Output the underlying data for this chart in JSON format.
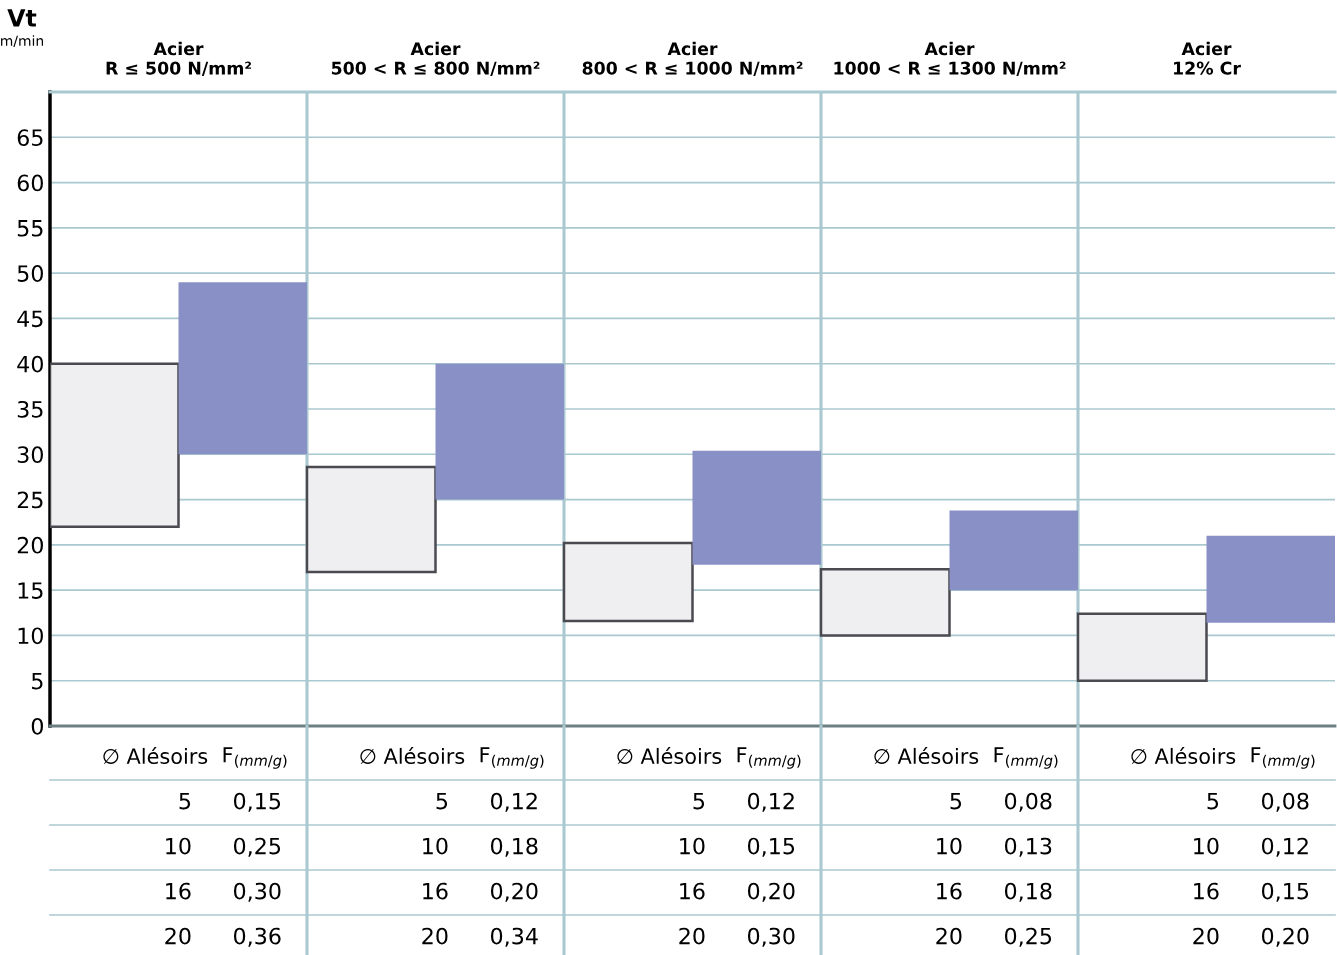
{
  "chart_data": {
    "type": "bar",
    "ylabel": "Vt\nm/min",
    "categories": [
      "Acier\nR ≤ 500 N/mm²",
      "Acier\n500 < R ≤ 800 N/mm²",
      "Acier\n800 < R ≤ 1000 N/mm²",
      "Acier\n1000 < R ≤ 1300 N/mm²",
      "Acier\n12% Cr"
    ],
    "series": [
      {
        "color": "#efeff1",
        "base": [
          22,
          17,
          11.6,
          10,
          5
        ],
        "values": [
          18,
          11.6,
          8.6,
          7.3,
          7.4
        ]
      },
      {
        "color": "#8890c6",
        "base": [
          30,
          25,
          17.8,
          15,
          11.4
        ],
        "values": [
          19,
          15,
          12.6,
          8.8,
          9.6
        ]
      }
    ],
    "ylim": [
      0,
      70
    ],
    "yticks": [
      0,
      5,
      10,
      15,
      20,
      25,
      30,
      35,
      40,
      45,
      50,
      55,
      60,
      65
    ],
    "grid": true,
    "legend": false,
    "annotations": [
      "∅ Alésoirs",
      "F$_{(mm/g)}$",
      "∅ Alésoirs",
      "F$_{(mm/g)}$",
      "∅ Alésoirs",
      "F$_{(mm/g)}$",
      "∅ Alésoirs",
      "F$_{(mm/g)}$",
      "∅ Alésoirs",
      "F$_{(mm/g)}$",
      "5",
      "0,15",
      "5",
      "0,12",
      "5",
      "0,12",
      "5",
      "0,08",
      "5",
      "0,08",
      "10",
      "0,25",
      "10",
      "0,18",
      "10",
      "0,15",
      "10",
      "0,13",
      "10",
      "0,12",
      "16",
      "0,30",
      "16",
      "0,20",
      "16",
      "0,20",
      "16",
      "0,18",
      "16",
      "0,15",
      "20",
      "0,36",
      "20",
      "0,34",
      "20",
      "0,30",
      "20",
      "0,25",
      "20",
      "0,20"
    ]
  }
}
